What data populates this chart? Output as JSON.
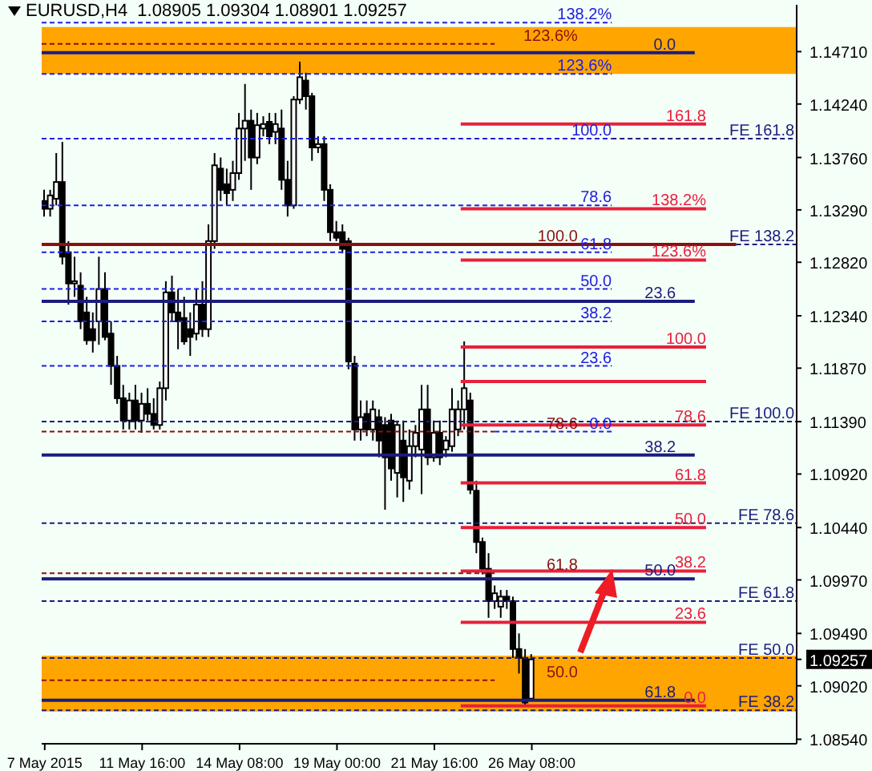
{
  "chart_data": {
    "type": "candlestick",
    "title": "EURUSD,H4  1.08905 1.09304 1.08901 1.09257",
    "color": "#000000",
    "categories": [
      "7 May 2015",
      null,
      null,
      null,
      null,
      null,
      null,
      null,
      null,
      null,
      null,
      null,
      null,
      null,
      null,
      null,
      "11 May 16:00",
      null,
      null,
      null,
      null,
      null,
      null,
      null,
      null,
      null,
      null,
      null,
      null,
      null,
      null,
      null,
      "14 May 08:00",
      null,
      null,
      null,
      null,
      null,
      null,
      null,
      null,
      null,
      null,
      null,
      null,
      null,
      null,
      null,
      "19 May 00:00",
      null,
      null,
      null,
      null,
      null,
      null,
      null,
      null,
      null,
      null,
      null,
      null,
      null,
      null,
      null,
      "21 May 16:00",
      null,
      null,
      null,
      null,
      null,
      null,
      null,
      null,
      null,
      null,
      null,
      null,
      null,
      null,
      null,
      "26 May 08:00",
      null,
      null,
      null,
      null,
      null,
      null,
      null,
      null,
      null,
      null,
      null,
      null,
      null,
      null,
      null,
      null,
      null,
      null,
      null,
      null,
      null,
      null,
      null,
      null,
      null,
      null,
      null,
      null,
      null,
      null,
      null,
      null,
      null,
      null,
      null,
      null,
      null,
      null,
      null,
      null,
      null,
      null,
      null
    ],
    "ohlc": [
      [
        1.1337,
        1.1347,
        1.1323,
        1.133
      ],
      [
        1.133,
        1.1347,
        1.1323,
        1.1342
      ],
      [
        1.1339,
        1.138,
        1.1333,
        1.1354
      ],
      [
        1.1354,
        1.139,
        1.128,
        1.1287
      ],
      [
        1.1291,
        1.1301,
        1.1244,
        1.1263
      ],
      [
        1.1263,
        1.1287,
        1.1251,
        1.1265
      ],
      [
        1.1261,
        1.1273,
        1.1222,
        1.1229
      ],
      [
        1.1237,
        1.1251,
        1.1208,
        1.1212
      ],
      [
        1.1222,
        1.1237,
        1.1201,
        1.1212
      ],
      [
        1.1229,
        1.1287,
        1.1208,
        1.1258
      ],
      [
        1.1258,
        1.1273,
        1.1212,
        1.1215
      ],
      [
        1.1218,
        1.1229,
        1.1172,
        1.1189
      ],
      [
        1.1189,
        1.1198,
        1.1155,
        1.116
      ],
      [
        1.116,
        1.1172,
        1.1132,
        1.114
      ],
      [
        1.114,
        1.1165,
        1.1132,
        1.1158
      ],
      [
        1.1158,
        1.1172,
        1.1132,
        1.114
      ],
      [
        1.114,
        1.1165,
        1.1129,
        1.1155
      ],
      [
        1.1155,
        1.1169,
        1.114,
        1.1146
      ],
      [
        1.1146,
        1.116,
        1.1132,
        1.1136
      ],
      [
        1.1136,
        1.1175,
        1.1132,
        1.1169
      ],
      [
        1.1169,
        1.1265,
        1.1158,
        1.1255
      ],
      [
        1.1255,
        1.127,
        1.1229,
        1.1237
      ],
      [
        1.1237,
        1.1258,
        1.1204,
        1.1229
      ],
      [
        1.1232,
        1.1251,
        1.1208,
        1.1211
      ],
      [
        1.1222,
        1.1237,
        1.1198,
        1.1215
      ],
      [
        1.1218,
        1.1258,
        1.1212,
        1.1244
      ],
      [
        1.1244,
        1.1265,
        1.1215,
        1.1222
      ],
      [
        1.1222,
        1.1316,
        1.1215,
        1.1301
      ],
      [
        1.1301,
        1.138,
        1.1294,
        1.1369
      ],
      [
        1.1366,
        1.1376,
        1.1337,
        1.1347
      ],
      [
        1.1352,
        1.1366,
        1.1333,
        1.1344
      ],
      [
        1.1347,
        1.1373,
        1.1337,
        1.1362
      ],
      [
        1.1362,
        1.1416,
        1.1356,
        1.1402
      ],
      [
        1.1402,
        1.1442,
        1.1373,
        1.1409
      ],
      [
        1.1409,
        1.1419,
        1.1347,
        1.1376
      ],
      [
        1.1376,
        1.1416,
        1.137,
        1.1405
      ],
      [
        1.1402,
        1.1413,
        1.1395,
        1.1406
      ],
      [
        1.1408,
        1.1416,
        1.1388,
        1.1395
      ],
      [
        1.1399,
        1.1416,
        1.1388,
        1.1406
      ],
      [
        1.1402,
        1.1419,
        1.1347,
        1.1356
      ],
      [
        1.1356,
        1.1373,
        1.1323,
        1.1333
      ],
      [
        1.1333,
        1.1431,
        1.133,
        1.1428
      ],
      [
        1.1428,
        1.1462,
        1.1424,
        1.1448
      ],
      [
        1.1445,
        1.1452,
        1.1419,
        1.1431
      ],
      [
        1.1431,
        1.1434,
        1.1373,
        1.1385
      ],
      [
        1.1385,
        1.1395,
        1.138,
        1.1388
      ],
      [
        1.1388,
        1.1395,
        1.1337,
        1.1347
      ],
      [
        1.1347,
        1.1352,
        1.1301,
        1.1309
      ],
      [
        1.1309,
        1.1319,
        1.1301,
        1.1304
      ],
      [
        1.1309,
        1.1316,
        1.129,
        1.1294
      ],
      [
        1.1301,
        1.1304,
        1.1186,
        1.1193
      ],
      [
        1.1191,
        1.1198,
        1.1122,
        1.1132
      ],
      [
        1.1132,
        1.1158,
        1.1122,
        1.1143
      ],
      [
        1.1146,
        1.1158,
        1.1126,
        1.1132
      ],
      [
        1.1132,
        1.1158,
        1.1122,
        1.115
      ],
      [
        1.1143,
        1.115,
        1.1107,
        1.1122
      ],
      [
        1.1136,
        1.1143,
        1.106,
        1.1107
      ],
      [
        1.114,
        1.1146,
        1.1086,
        1.1097
      ],
      [
        1.1093,
        1.114,
        1.1071,
        1.1136
      ],
      [
        1.1122,
        1.114,
        1.1067,
        1.1089
      ],
      [
        1.1086,
        1.1132,
        1.1078,
        1.1117
      ],
      [
        1.1117,
        1.1136,
        1.1107,
        1.1129
      ],
      [
        1.1114,
        1.1172,
        1.1074,
        1.115
      ],
      [
        1.115,
        1.1172,
        1.11,
        1.1107
      ],
      [
        1.1107,
        1.114,
        1.1103,
        1.1129
      ],
      [
        1.1129,
        1.114,
        1.11,
        1.1107
      ],
      [
        1.1114,
        1.1126,
        1.1107,
        1.1122
      ],
      [
        1.1117,
        1.1169,
        1.1112,
        1.115
      ],
      [
        1.1132,
        1.1158,
        1.1126,
        1.115
      ],
      [
        1.115,
        1.1211,
        1.1132,
        1.1169
      ],
      [
        1.1158,
        1.1165,
        1.1074,
        1.1078
      ],
      [
        1.1077,
        1.1086,
        1.1021,
        1.1031
      ],
      [
        1.1031,
        1.1035,
        1.1002,
        1.1007
      ],
      [
        1.1007,
        1.1021,
        1.0963,
        1.0978
      ],
      [
        1.0978,
        1.0992,
        1.0971,
        1.0985
      ],
      [
        1.0973,
        1.0988,
        1.0963,
        1.0982
      ],
      [
        1.0982,
        1.0988,
        1.0971,
        1.0978
      ],
      [
        1.0978,
        1.0982,
        1.0927,
        1.0935
      ],
      [
        1.0935,
        1.0949,
        1.0913,
        1.0927
      ],
      [
        1.0927,
        1.0935,
        1.0884,
        1.0887
      ],
      [
        1.08905,
        1.09304,
        1.08901,
        1.09257
      ],
      null,
      null,
      null,
      null,
      null,
      null,
      null,
      null,
      null,
      null,
      null,
      null,
      null,
      null,
      null,
      null,
      null,
      null,
      null,
      null,
      null,
      null,
      null,
      null,
      null,
      null,
      null,
      null,
      null,
      null,
      null,
      null,
      null,
      null,
      null,
      null,
      null,
      null,
      null,
      null,
      null,
      null,
      null
    ],
    "ylim": [
      1.085,
      1.1513
    ],
    "yticks": [
      {
        "value": 1.1471,
        "label": "1.14710"
      },
      {
        "value": 1.1424,
        "label": "1.14240"
      },
      {
        "value": 1.1376,
        "label": "1.13760"
      },
      {
        "value": 1.1329,
        "label": "1.13290"
      },
      {
        "value": 1.1282,
        "label": "1.12820"
      },
      {
        "value": 1.1234,
        "label": "1.12340"
      },
      {
        "value": 1.1187,
        "label": "1.11870"
      },
      {
        "value": 1.1139,
        "label": "1.11390"
      },
      {
        "value": 1.1092,
        "label": "1.10920"
      },
      {
        "value": 1.1044,
        "label": "1.10440"
      },
      {
        "value": 1.0997,
        "label": "1.09970"
      },
      {
        "value": 1.0949,
        "label": "1.09490"
      },
      {
        "value": 1.09257,
        "label": "1.09257"
      },
      {
        "value": 1.0902,
        "label": "1.09020"
      },
      {
        "value": 1.0854,
        "label": "1.08540"
      }
    ],
    "bands": [
      {
        "axis": "y",
        "from": 1.1451,
        "to": 1.1493,
        "color": "#ffa500"
      },
      {
        "axis": "y",
        "from": 1.0879,
        "to": 1.0929,
        "color": "#ffa500"
      }
    ],
    "annotations": [
      "138.2%",
      "123.6%",
      "0.0",
      "123.6%",
      "161.8",
      "100.0",
      "FE 161.8",
      "78.6",
      "138.2%",
      "100.0",
      "FE 138.2",
      "61.8",
      "123.6%",
      "50.0",
      "23.6",
      "38.2",
      "100.0",
      "23.6",
      "FE 100.0",
      "78.6",
      "78.6",
      "0.0",
      "38.2",
      "61.8",
      "FE 78.6",
      "50.0",
      "38.2",
      "61.8",
      "50.0",
      "FE 61.8",
      "23.6",
      "FE 50.0",
      "50.0",
      "61.8",
      "0.0",
      "FE 38.2"
    ],
    "ref_lines": [
      {
        "axis": "y",
        "value": 1.1497,
        "color": "#2020e0",
        "line_style": "dashed"
      },
      {
        "axis": "y",
        "value": 1.1478,
        "color": "#8b1010",
        "line_style": "dashed"
      },
      {
        "axis": "y",
        "value": 1.147,
        "color": "#1c1c7c",
        "line_style": "solid"
      },
      {
        "axis": "y",
        "value": 1.1451,
        "color": "#2020e0",
        "line_style": "dashed"
      },
      {
        "axis": "y",
        "value": 1.1406,
        "color": "#e8203c",
        "line_style": "solid"
      },
      {
        "axis": "y",
        "value": 1.1393,
        "color": "#2020e0",
        "line_style": "dashed"
      },
      {
        "axis": "y",
        "value": 1.1393,
        "color": "#1c1c7c",
        "line_style": "dashed"
      },
      {
        "axis": "y",
        "value": 1.1333,
        "color": "#2020e0",
        "line_style": "dashed"
      },
      {
        "axis": "y",
        "value": 1.133,
        "color": "#e8203c",
        "line_style": "solid"
      },
      {
        "axis": "y",
        "value": 1.1298,
        "color": "#8b1010",
        "line_style": "solid"
      },
      {
        "axis": "y",
        "value": 1.1298,
        "color": "#1c1c7c",
        "line_style": "dashed"
      },
      {
        "axis": "y",
        "value": 1.1291,
        "color": "#2020e0",
        "line_style": "dashed"
      },
      {
        "axis": "y",
        "value": 1.1284,
        "color": "#e8203c",
        "line_style": "solid"
      },
      {
        "axis": "y",
        "value": 1.1258,
        "color": "#2020e0",
        "line_style": "dashed"
      },
      {
        "axis": "y",
        "value": 1.1247,
        "color": "#1c1c7c",
        "line_style": "solid"
      },
      {
        "axis": "y",
        "value": 1.1229,
        "color": "#2020e0",
        "line_style": "dashed"
      },
      {
        "axis": "y",
        "value": 1.1206,
        "color": "#e8203c",
        "line_style": "solid"
      },
      {
        "axis": "y",
        "value": 1.1189,
        "color": "#2020e0",
        "line_style": "dashed"
      },
      {
        "axis": "y",
        "value": 1.1139,
        "color": "#1c1c7c",
        "line_style": "dashed"
      },
      {
        "axis": "y",
        "value": 1.1136,
        "color": "#e8203c",
        "line_style": "solid"
      },
      {
        "axis": "y",
        "value": 1.113,
        "color": "#8b1010",
        "line_style": "dashed"
      },
      {
        "axis": "y",
        "value": 1.113,
        "color": "#2020e0",
        "line_style": "dashed"
      },
      {
        "axis": "y",
        "value": 1.1109,
        "color": "#1c1c7c",
        "line_style": "solid"
      },
      {
        "axis": "y",
        "value": 1.1084,
        "color": "#e8203c",
        "line_style": "solid"
      },
      {
        "axis": "y",
        "value": 1.1048,
        "color": "#1c1c7c",
        "line_style": "dashed"
      },
      {
        "axis": "y",
        "value": 1.1044,
        "color": "#e8203c",
        "line_style": "solid"
      },
      {
        "axis": "y",
        "value": 1.1005,
        "color": "#e8203c",
        "line_style": "solid"
      },
      {
        "axis": "y",
        "value": 1.1003,
        "color": "#8b1010",
        "line_style": "dashed"
      },
      {
        "axis": "y",
        "value": 1.0998,
        "color": "#1c1c7c",
        "line_style": "solid"
      },
      {
        "axis": "y",
        "value": 1.0978,
        "color": "#1c1c7c",
        "line_style": "dashed"
      },
      {
        "axis": "y",
        "value": 1.0959,
        "color": "#e8203c",
        "line_style": "solid"
      },
      {
        "axis": "y",
        "value": 1.0927,
        "color": "#1c1c7c",
        "line_style": "dashed"
      },
      {
        "axis": "y",
        "value": 1.0907,
        "color": "#8b1010",
        "line_style": "dashed"
      },
      {
        "axis": "y",
        "value": 1.0889,
        "color": "#1c1c7c",
        "line_style": "solid"
      },
      {
        "axis": "y",
        "value": 1.0884,
        "color": "#e8203c",
        "line_style": "solid"
      },
      {
        "axis": "y",
        "value": 1.088,
        "color": "#1c1c7c",
        "line_style": "dashed"
      },
      {
        "axis": "y",
        "value": 1.1175,
        "color": "#e8203c",
        "line_style": "solid"
      }
    ]
  }
}
